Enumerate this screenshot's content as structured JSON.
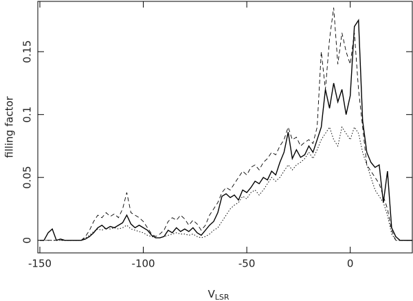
{
  "chart_data": {
    "type": "line",
    "xlabel": "V",
    "xlabel_subscript": "LSR",
    "ylabel": "filling factor",
    "x": [
      -150,
      -148,
      -146,
      -144,
      -142,
      -140,
      -138,
      -136,
      -134,
      -132,
      -130,
      -128,
      -126,
      -124,
      -122,
      -120,
      -118,
      -116,
      -114,
      -112,
      -110,
      -108,
      -106,
      -104,
      -102,
      -100,
      -98,
      -96,
      -94,
      -92,
      -90,
      -88,
      -86,
      -84,
      -82,
      -80,
      -78,
      -76,
      -74,
      -72,
      -70,
      -68,
      -66,
      -64,
      -62,
      -60,
      -58,
      -56,
      -54,
      -52,
      -50,
      -48,
      -46,
      -44,
      -42,
      -40,
      -38,
      -36,
      -34,
      -32,
      -30,
      -28,
      -26,
      -24,
      -22,
      -20,
      -18,
      -16,
      -14,
      -12,
      -10,
      -8,
      -6,
      -4,
      -2,
      0,
      2,
      4,
      6,
      8,
      10,
      12,
      14,
      16,
      18,
      20,
      22,
      24,
      26,
      28,
      30
    ],
    "series": [
      {
        "color": "#000000",
        "style": "solid",
        "values": [
          0,
          0,
          0.006,
          0.009,
          0,
          0.001,
          0,
          0,
          0,
          0,
          0,
          0.001,
          0.003,
          0.006,
          0.01,
          0.012,
          0.009,
          0.011,
          0.01,
          0.012,
          0.014,
          0.02,
          0.013,
          0.01,
          0.012,
          0.01,
          0.008,
          0.004,
          0.002,
          0.002,
          0.003,
          0.008,
          0.006,
          0.01,
          0.007,
          0.009,
          0.007,
          0.01,
          0.006,
          0.004,
          0.008,
          0.012,
          0.015,
          0.022,
          0.035,
          0.037,
          0.034,
          0.036,
          0.032,
          0.04,
          0.038,
          0.042,
          0.047,
          0.045,
          0.05,
          0.048,
          0.055,
          0.052,
          0.062,
          0.07,
          0.086,
          0.065,
          0.072,
          0.066,
          0.068,
          0.075,
          0.07,
          0.08,
          0.09,
          0.12,
          0.105,
          0.125,
          0.11,
          0.12,
          0.1,
          0.115,
          0.17,
          0.175,
          0.095,
          0.07,
          0.062,
          0.058,
          0.06,
          0.03,
          0.055,
          0.01,
          0.003,
          0,
          0,
          0,
          0
        ]
      },
      {
        "color": "#000000",
        "style": "dashed",
        "values": [
          0,
          0,
          0,
          0,
          0,
          0,
          0,
          0,
          0,
          0,
          0,
          0.003,
          0.008,
          0.015,
          0.02,
          0.018,
          0.022,
          0.019,
          0.021,
          0.018,
          0.025,
          0.038,
          0.022,
          0.02,
          0.018,
          0.015,
          0.01,
          0.005,
          0.003,
          0.005,
          0.008,
          0.015,
          0.018,
          0.016,
          0.02,
          0.017,
          0.012,
          0.016,
          0.013,
          0.008,
          0.012,
          0.02,
          0.025,
          0.03,
          0.038,
          0.042,
          0.04,
          0.045,
          0.05,
          0.055,
          0.052,
          0.058,
          0.06,
          0.056,
          0.062,
          0.065,
          0.07,
          0.068,
          0.075,
          0.08,
          0.09,
          0.08,
          0.082,
          0.075,
          0.078,
          0.08,
          0.077,
          0.09,
          0.15,
          0.12,
          0.16,
          0.185,
          0.14,
          0.165,
          0.15,
          0.14,
          0.165,
          0.12,
          0.09,
          0.06,
          0.055,
          0.05,
          0.045,
          0.035,
          0.025,
          0.008,
          0,
          0,
          0,
          0,
          0
        ]
      },
      {
        "color": "#000000",
        "style": "dotted",
        "values": [
          0,
          0,
          0,
          0,
          0,
          0,
          0,
          0,
          0,
          0,
          0,
          0.002,
          0.004,
          0.007,
          0.009,
          0.008,
          0.01,
          0.009,
          0.01,
          0.009,
          0.01,
          0.012,
          0.009,
          0.008,
          0.007,
          0.006,
          0.004,
          0.003,
          0.002,
          0.002,
          0.003,
          0.004,
          0.005,
          0.006,
          0.005,
          0.005,
          0.004,
          0.005,
          0.003,
          0.002,
          0.003,
          0.005,
          0.008,
          0.01,
          0.015,
          0.02,
          0.025,
          0.028,
          0.03,
          0.035,
          0.033,
          0.038,
          0.04,
          0.036,
          0.04,
          0.045,
          0.05,
          0.047,
          0.05,
          0.055,
          0.06,
          0.056,
          0.06,
          0.062,
          0.065,
          0.07,
          0.065,
          0.072,
          0.08,
          0.085,
          0.09,
          0.08,
          0.075,
          0.09,
          0.085,
          0.08,
          0.09,
          0.085,
          0.07,
          0.06,
          0.05,
          0.04,
          0.035,
          0.03,
          0.02,
          0.005,
          0,
          0,
          0,
          0,
          0
        ]
      }
    ],
    "xlim": [
      -151,
      30
    ],
    "xticks": [
      -150,
      -100,
      -50,
      0
    ],
    "ylim": [
      -0.01,
      0.19
    ],
    "yticks": [
      0,
      0.05,
      0.1,
      0.15
    ]
  }
}
